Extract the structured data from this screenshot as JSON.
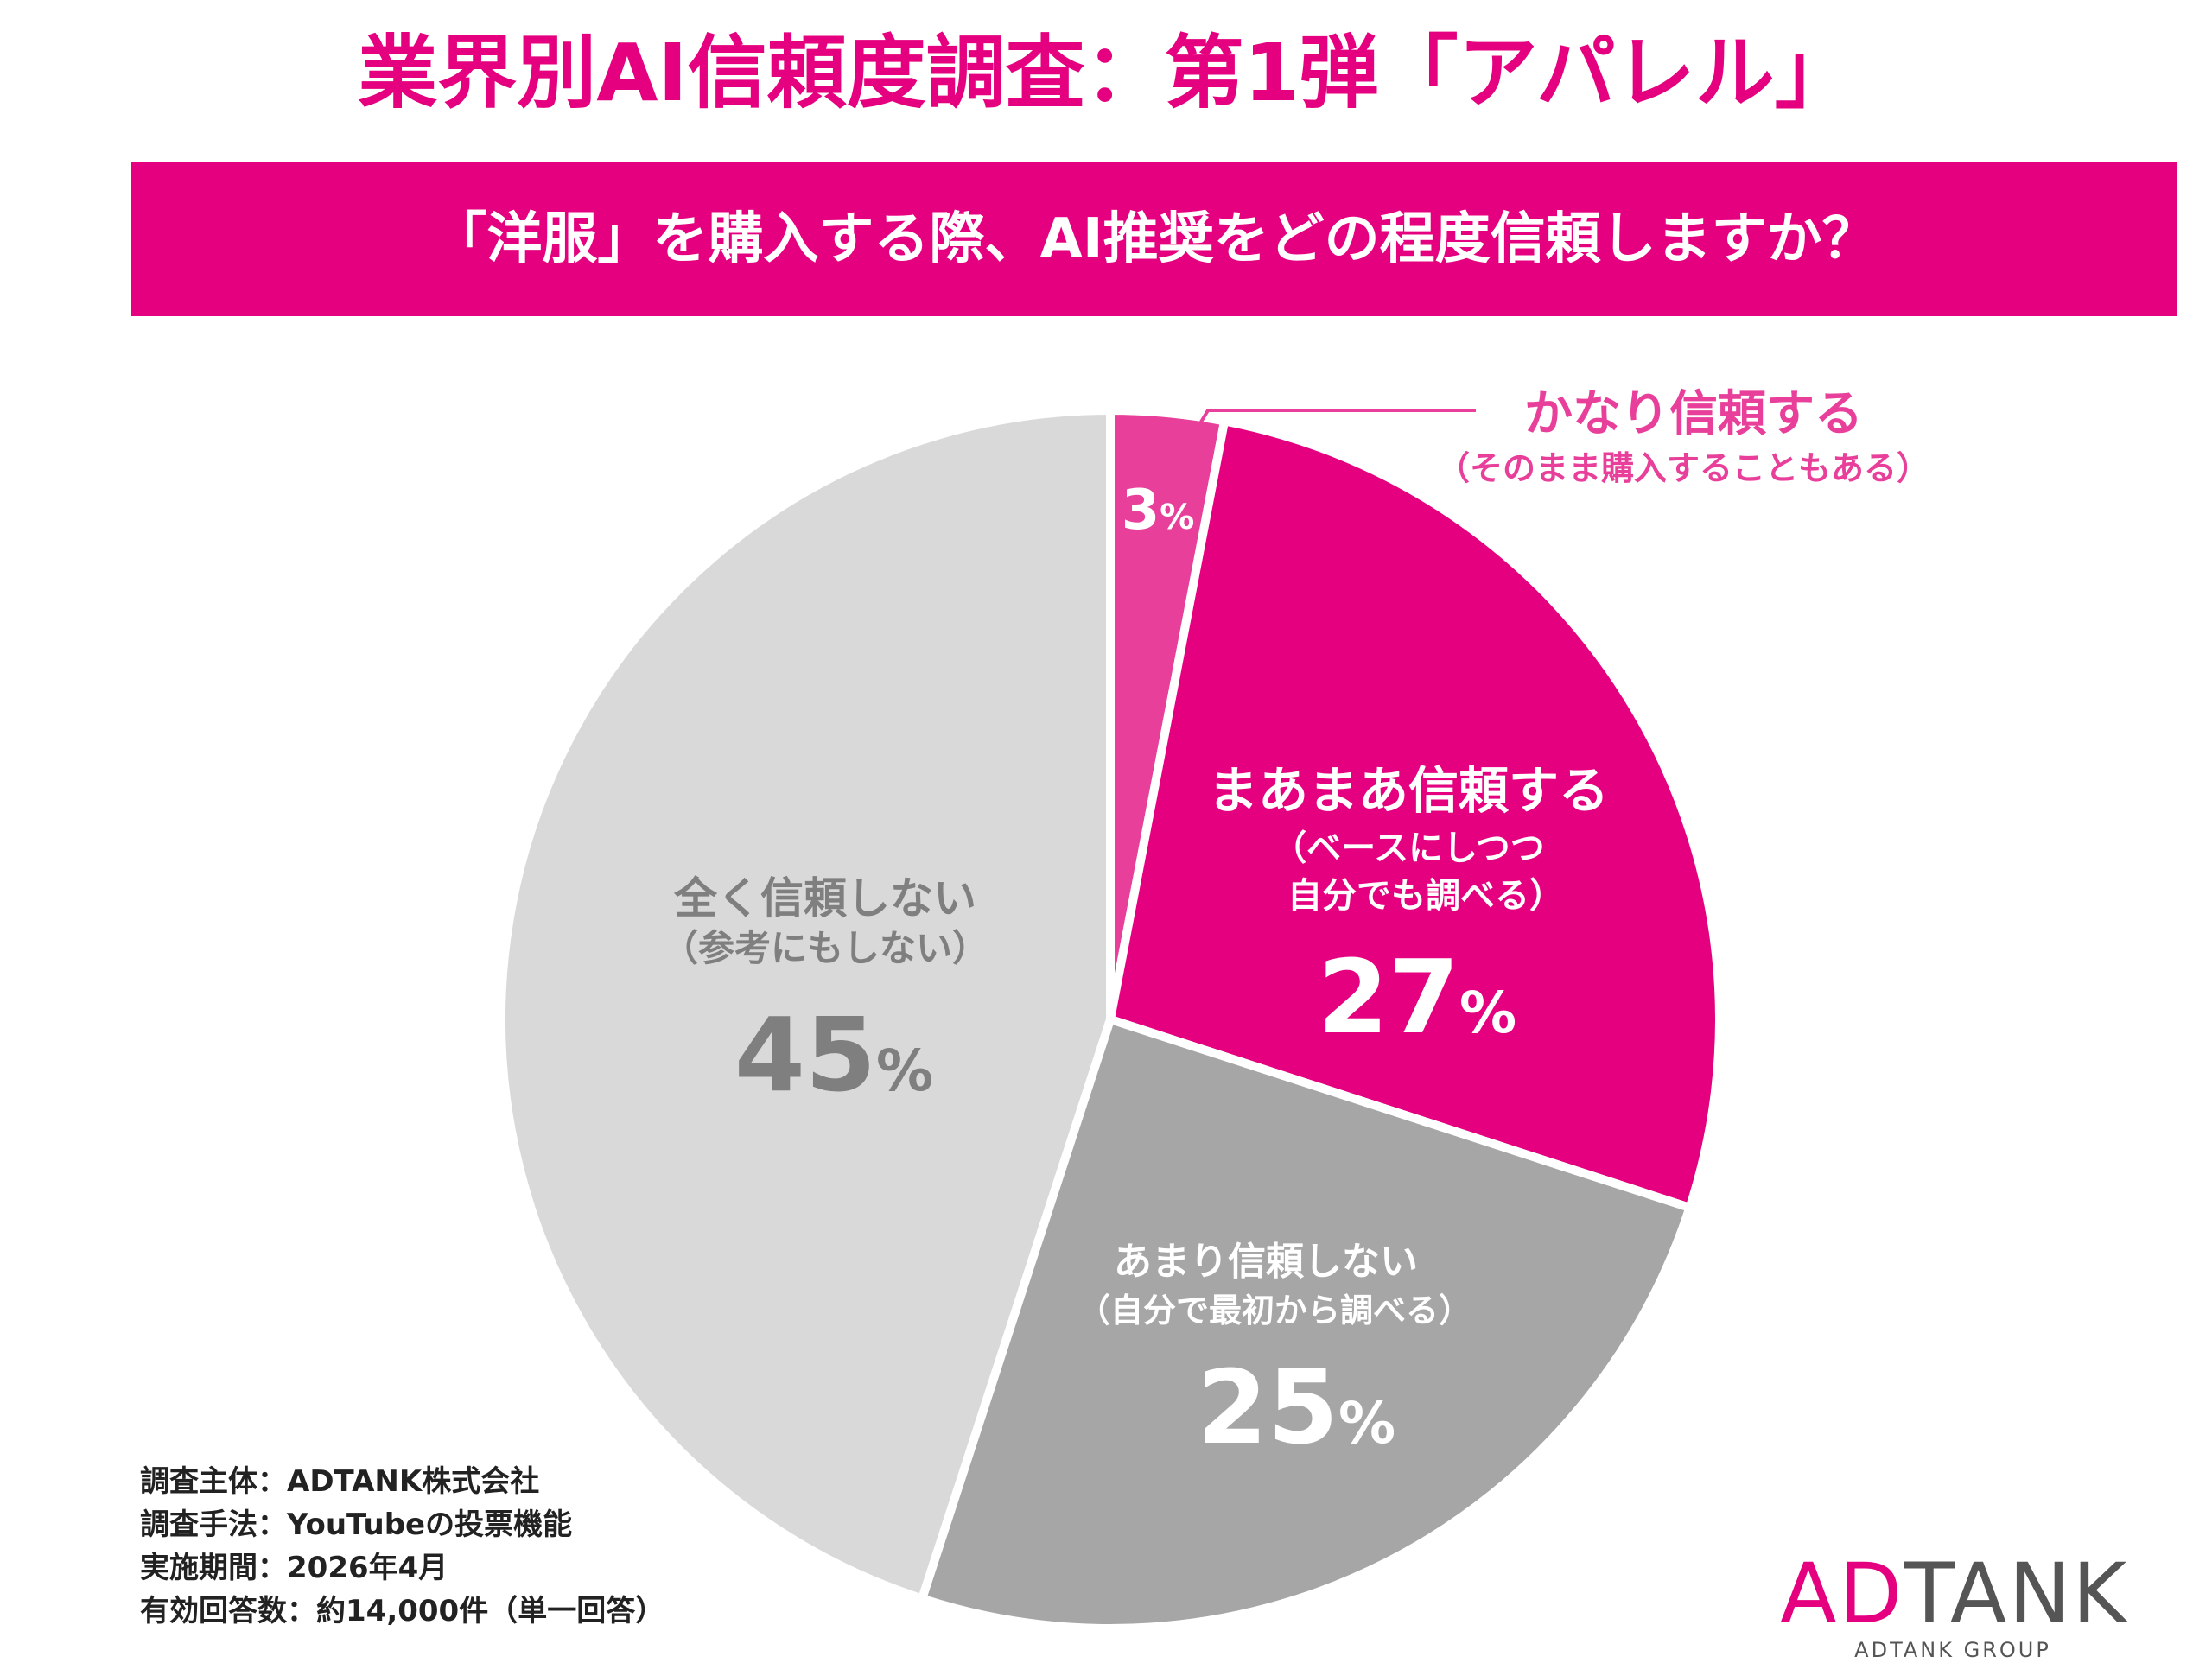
{
  "title": "業界別AI信頼度調査：第1弾「アパレル」",
  "question": "「洋服」を購入する際、AI推奨をどの程度信頼しますか？",
  "colors": {
    "accent": "#e4007f",
    "slice_high": "#e8409a",
    "slice_mid": "#e4007f",
    "slice_low": "#a6a6a6",
    "slice_none": "#d9d9d9",
    "text_none": "#7f7f7f"
  },
  "chart_data": {
    "type": "pie",
    "title": "",
    "slices": [
      {
        "name": "かなり信頼する",
        "note": "（そのまま購入することもある）",
        "value": 3,
        "color": "#e8409a"
      },
      {
        "name": "まあまあ信頼する",
        "note_lines": [
          "（ベースにしつつ",
          "自分でも調べる）"
        ],
        "value": 27,
        "color": "#e4007f"
      },
      {
        "name": "あまり信頼しない",
        "note": "（自分で最初から調べる）",
        "value": 25,
        "color": "#a6a6a6"
      },
      {
        "name": "全く信頼しない",
        "note": "（参考にもしない）",
        "value": 45,
        "color": "#d9d9d9"
      }
    ],
    "unit": "%"
  },
  "source": {
    "lines": [
      "調査主体：ADTANK株式会社",
      "調査手法：YouTubeの投票機能",
      "実施期間：2026年4月",
      "有効回答数：約14,000件（単一回答）"
    ]
  },
  "logo": {
    "ad": "AD",
    "tank": "TANK",
    "sub": "ADTANK GROUP"
  }
}
